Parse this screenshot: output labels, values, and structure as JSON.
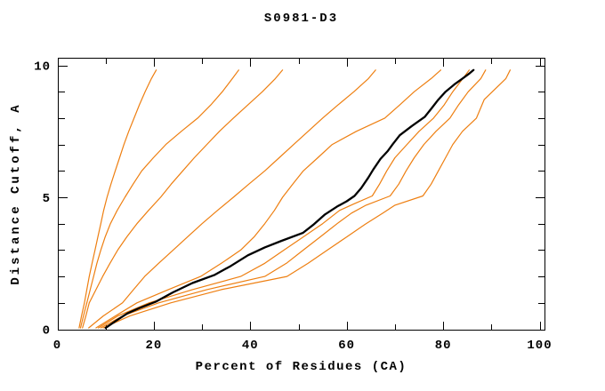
{
  "chart_data": {
    "type": "line",
    "title": "S0981-D3",
    "xlabel": "Percent of Residues (CA)",
    "ylabel": "Distance Cutoff, A",
    "xlim": [
      0,
      100
    ],
    "ylim": [
      0,
      10
    ],
    "x_major_ticks": [
      0,
      20,
      40,
      60,
      80,
      100
    ],
    "x_minor_step": 10,
    "y_major_ticks": [
      0,
      5,
      10
    ],
    "y_minor_step": 1,
    "grid": false,
    "legend": "none",
    "colors": {
      "highlight": "#000000",
      "model": "#ee7f11",
      "frame": "#000000"
    },
    "series": [
      {
        "highlight": false,
        "points": [
          [
            4.5,
            0.05
          ],
          [
            5,
            0.5
          ],
          [
            5.6,
            1
          ],
          [
            6.1,
            1.5
          ],
          [
            6.6,
            2
          ],
          [
            7.2,
            2.5
          ],
          [
            7.8,
            3
          ],
          [
            8.4,
            3.5
          ],
          [
            9,
            4
          ],
          [
            9.6,
            4.5
          ],
          [
            10.3,
            5
          ],
          [
            11.1,
            5.5
          ],
          [
            12,
            6
          ],
          [
            12.9,
            6.5
          ],
          [
            13.8,
            7
          ],
          [
            14.8,
            7.5
          ],
          [
            15.9,
            8
          ],
          [
            17,
            8.5
          ],
          [
            18.2,
            9
          ],
          [
            19.5,
            9.5
          ],
          [
            20.5,
            9.82
          ]
        ]
      },
      {
        "highlight": false,
        "points": [
          [
            4.8,
            0.05
          ],
          [
            5.4,
            0.5
          ],
          [
            6.1,
            1
          ],
          [
            6.8,
            1.5
          ],
          [
            7.5,
            2
          ],
          [
            8.2,
            2.5
          ],
          [
            9,
            3
          ],
          [
            9.9,
            3.5
          ],
          [
            11,
            4
          ],
          [
            12.4,
            4.5
          ],
          [
            14,
            5
          ],
          [
            15.7,
            5.5
          ],
          [
            17.5,
            6
          ],
          [
            19.9,
            6.5
          ],
          [
            22.5,
            7
          ],
          [
            25.7,
            7.5
          ],
          [
            29.1,
            8
          ],
          [
            31.8,
            8.5
          ],
          [
            34.2,
            9
          ],
          [
            36.3,
            9.5
          ],
          [
            37.6,
            9.82
          ]
        ]
      },
      {
        "highlight": false,
        "points": [
          [
            5.2,
            0.05
          ],
          [
            5.9,
            0.5
          ],
          [
            6.6,
            1
          ],
          [
            8,
            1.5
          ],
          [
            9.4,
            2
          ],
          [
            10.9,
            2.5
          ],
          [
            12.5,
            3
          ],
          [
            14.4,
            3.5
          ],
          [
            16.5,
            4
          ],
          [
            18.9,
            4.5
          ],
          [
            21.4,
            5
          ],
          [
            23.6,
            5.5
          ],
          [
            26,
            6
          ],
          [
            28.4,
            6.5
          ],
          [
            31,
            7
          ],
          [
            33.6,
            7.5
          ],
          [
            36.5,
            8
          ],
          [
            39.5,
            8.5
          ],
          [
            42.5,
            9
          ],
          [
            45.2,
            9.5
          ],
          [
            46.7,
            9.82
          ]
        ]
      },
      {
        "highlight": false,
        "points": [
          [
            6.5,
            0.05
          ],
          [
            9.5,
            0.5
          ],
          [
            13.5,
            1
          ],
          [
            15.8,
            1.5
          ],
          [
            18.1,
            2
          ],
          [
            21,
            2.5
          ],
          [
            24,
            3
          ],
          [
            27,
            3.5
          ],
          [
            30,
            4
          ],
          [
            33.2,
            4.5
          ],
          [
            36.5,
            5
          ],
          [
            39.7,
            5.5
          ],
          [
            43,
            6
          ],
          [
            46,
            6.5
          ],
          [
            49,
            7
          ],
          [
            52,
            7.5
          ],
          [
            55,
            8
          ],
          [
            58.2,
            8.5
          ],
          [
            61.5,
            9
          ],
          [
            64.5,
            9.5
          ],
          [
            66,
            9.82
          ]
        ]
      },
      {
        "highlight": false,
        "points": [
          [
            8,
            0.05
          ],
          [
            12,
            0.5
          ],
          [
            16.5,
            1
          ],
          [
            23,
            1.5
          ],
          [
            29.7,
            2
          ],
          [
            34,
            2.5
          ],
          [
            38,
            3
          ],
          [
            40.8,
            3.5
          ],
          [
            43,
            4
          ],
          [
            45,
            4.5
          ],
          [
            46.7,
            5
          ],
          [
            48.8,
            5.5
          ],
          [
            51,
            6
          ],
          [
            54,
            6.5
          ],
          [
            57,
            7
          ],
          [
            62,
            7.5
          ],
          [
            67.9,
            8
          ],
          [
            71,
            8.5
          ],
          [
            74,
            9
          ],
          [
            77.5,
            9.5
          ],
          [
            79.5,
            9.82
          ]
        ]
      },
      {
        "highlight": false,
        "points": [
          [
            8.5,
            0.05
          ],
          [
            12.5,
            0.5
          ],
          [
            19,
            1
          ],
          [
            28,
            1.5
          ],
          [
            38,
            2
          ],
          [
            43,
            2.5
          ],
          [
            47,
            3
          ],
          [
            51,
            3.5
          ],
          [
            55,
            4
          ],
          [
            58.5,
            4.5
          ],
          [
            61.5,
            4.75
          ],
          [
            65.3,
            5.05
          ],
          [
            66.8,
            5.5
          ],
          [
            68.3,
            6
          ],
          [
            70,
            6.5
          ],
          [
            72.5,
            7
          ],
          [
            75,
            7.5
          ],
          [
            78,
            8
          ],
          [
            80.2,
            8.5
          ],
          [
            82,
            9
          ],
          [
            84.5,
            9.6
          ],
          [
            85.4,
            9.82
          ]
        ]
      },
      {
        "highlight": false,
        "points": [
          [
            9,
            0.05
          ],
          [
            13.5,
            0.5
          ],
          [
            21,
            1
          ],
          [
            31,
            1.5
          ],
          [
            43,
            2
          ],
          [
            47.5,
            2.5
          ],
          [
            51,
            3
          ],
          [
            54.5,
            3.5
          ],
          [
            58,
            4
          ],
          [
            61,
            4.4
          ],
          [
            64,
            4.7
          ],
          [
            69,
            5.05
          ],
          [
            70.8,
            5.5
          ],
          [
            72.3,
            6
          ],
          [
            74,
            6.5
          ],
          [
            76,
            7
          ],
          [
            78.5,
            7.5
          ],
          [
            81.4,
            8
          ],
          [
            83.2,
            8.5
          ],
          [
            85.2,
            9
          ],
          [
            87.8,
            9.5
          ],
          [
            88.8,
            9.82
          ]
        ]
      },
      {
        "highlight": false,
        "points": [
          [
            9.5,
            0.05
          ],
          [
            15,
            0.5
          ],
          [
            23.5,
            1
          ],
          [
            34,
            1.5
          ],
          [
            47.6,
            2
          ],
          [
            52,
            2.5
          ],
          [
            56,
            3
          ],
          [
            60,
            3.5
          ],
          [
            64,
            4
          ],
          [
            67.5,
            4.4
          ],
          [
            70,
            4.7
          ],
          [
            75.8,
            5.05
          ],
          [
            77.5,
            5.5
          ],
          [
            79,
            6
          ],
          [
            80.5,
            6.5
          ],
          [
            82,
            7
          ],
          [
            84,
            7.5
          ],
          [
            86.9,
            8
          ],
          [
            88.5,
            8.7
          ],
          [
            90.2,
            9
          ],
          [
            93,
            9.5
          ],
          [
            93.9,
            9.82
          ]
        ]
      },
      {
        "highlight": true,
        "points": [
          [
            10,
            0.05
          ],
          [
            12,
            0.3
          ],
          [
            14.5,
            0.6
          ],
          [
            17,
            0.8
          ],
          [
            20.5,
            1.05
          ],
          [
            24,
            1.4
          ],
          [
            28,
            1.75
          ],
          [
            32.5,
            2.05
          ],
          [
            36,
            2.4
          ],
          [
            39.5,
            2.8
          ],
          [
            43,
            3.1
          ],
          [
            46.5,
            3.35
          ],
          [
            50.9,
            3.65
          ],
          [
            53,
            3.95
          ],
          [
            55.5,
            4.35
          ],
          [
            58,
            4.65
          ],
          [
            60,
            4.85
          ],
          [
            61.6,
            5.05
          ],
          [
            63,
            5.35
          ],
          [
            64.5,
            5.75
          ],
          [
            65.5,
            6.05
          ],
          [
            67,
            6.45
          ],
          [
            68.5,
            6.75
          ],
          [
            69.5,
            7
          ],
          [
            71,
            7.35
          ],
          [
            73.5,
            7.7
          ],
          [
            76.2,
            8.05
          ],
          [
            77.5,
            8.35
          ],
          [
            79,
            8.7
          ],
          [
            80.5,
            9
          ],
          [
            82.5,
            9.3
          ],
          [
            84,
            9.5
          ],
          [
            85.5,
            9.7
          ],
          [
            86.3,
            9.82
          ]
        ]
      }
    ]
  }
}
